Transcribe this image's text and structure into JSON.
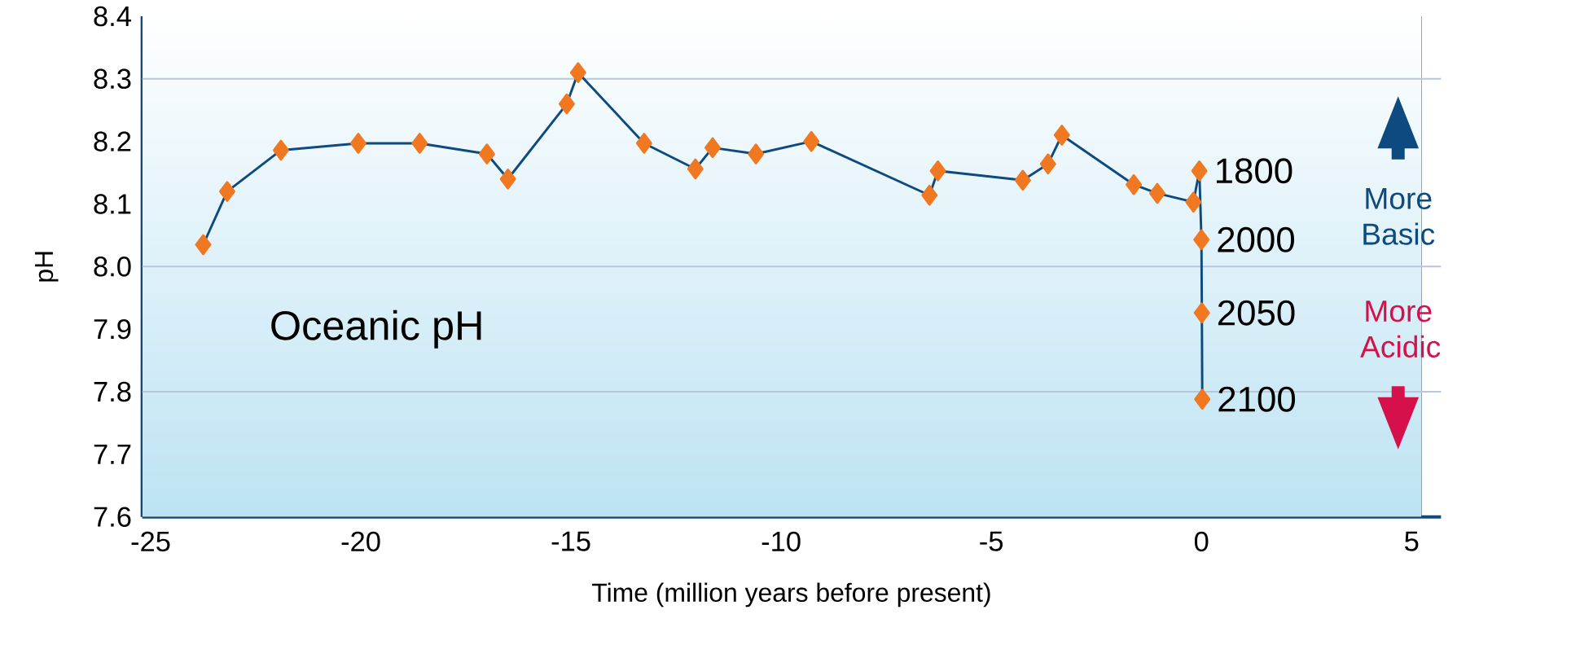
{
  "chart_data": {
    "type": "line",
    "xlabel": "Time (million years before present)",
    "ylabel": "pH",
    "x": [
      -23.75,
      -23.18,
      -21.9,
      -20.06,
      -18.6,
      -17.0,
      -16.5,
      -15.1,
      -14.83,
      -13.26,
      -12.04,
      -11.63,
      -10.6,
      -9.28,
      -6.47,
      -6.27,
      -4.25,
      -3.65,
      -3.32,
      -1.61,
      -1.05,
      -0.19,
      -0.05,
      0,
      0.01,
      0.02
    ],
    "series": [
      {
        "color": "#f07820",
        "values": [
          8.035,
          8.12,
          8.186,
          8.197,
          8.197,
          8.18,
          8.14,
          8.26,
          8.31,
          8.197,
          8.156,
          8.19,
          8.18,
          8.2,
          8.114,
          8.153,
          8.138,
          8.164,
          8.21,
          8.131,
          8.117,
          8.103,
          8.153,
          8.043,
          7.926,
          7.788
        ]
      }
    ],
    "marker": "diamond",
    "line_style": "solid",
    "xlim": [
      -25.2,
      5.7
    ],
    "ylim": [
      7.6,
      8.4
    ],
    "xticks": [
      -25,
      -20,
      -15,
      -10,
      -5,
      0,
      5
    ],
    "yticks": [
      7.6,
      7.7,
      7.8,
      7.9,
      {
        "value": 8,
        "label": "8.0"
      },
      8.1,
      8.2,
      8.3,
      8.4
    ],
    "ref_lines": [
      {
        "axis": "y",
        "value": 8.3,
        "color": "#b8c6dc"
      },
      {
        "axis": "y",
        "value": 8,
        "color": "#b8c6dc"
      },
      {
        "axis": "y",
        "value": 7.8,
        "color": "#b8c6dc"
      }
    ],
    "annotations": [
      {
        "text": "1800",
        "x": -0.05,
        "y": 8.153
      },
      {
        "text": "2000",
        "x": 0,
        "y": 8.043
      },
      {
        "text": "2050",
        "x": 0.01,
        "y": 7.926
      },
      {
        "text": "2100",
        "x": 0.02,
        "y": 7.788
      },
      "Oceanic pH",
      "More Basic",
      "More Acidic"
    ]
  }
}
